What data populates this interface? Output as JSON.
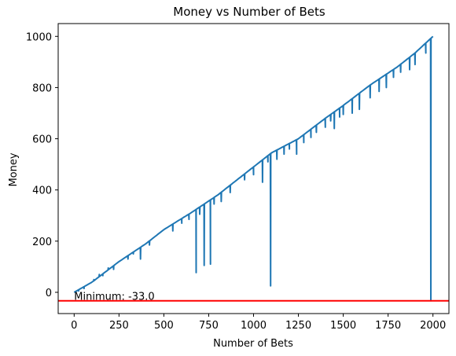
{
  "chart_data": {
    "type": "line",
    "title": "Money vs Number of Bets",
    "xlabel": "Number of Bets",
    "ylabel": "Money",
    "xlim": [
      -89,
      2089
    ],
    "ylim": [
      -83,
      1050
    ],
    "xticks": [
      0,
      250,
      500,
      750,
      1000,
      1250,
      1500,
      1750,
      2000
    ],
    "yticks": [
      0,
      200,
      400,
      600,
      800,
      1000
    ],
    "grid": false,
    "series": [
      {
        "color": "#1f77b4",
        "trend": [
          [
            0,
            0
          ],
          [
            100,
            40
          ],
          [
            250,
            120
          ],
          [
            400,
            190
          ],
          [
            500,
            245
          ],
          [
            650,
            310
          ],
          [
            800,
            380
          ],
          [
            1000,
            490
          ],
          [
            1100,
            545
          ],
          [
            1250,
            600
          ],
          [
            1400,
            680
          ],
          [
            1500,
            730
          ],
          [
            1650,
            810
          ],
          [
            1800,
            880
          ],
          [
            1900,
            935
          ],
          [
            2000,
            1000
          ]
        ],
        "dips": [
          [
            25,
            5
          ],
          [
            55,
            15
          ],
          [
            110,
            50
          ],
          [
            140,
            70
          ],
          [
            160,
            65
          ],
          [
            190,
            95
          ],
          [
            220,
            90
          ],
          [
            300,
            130
          ],
          [
            330,
            150
          ],
          [
            370,
            130
          ],
          [
            420,
            185
          ],
          [
            550,
            240
          ],
          [
            600,
            270
          ],
          [
            640,
            285
          ],
          [
            680,
            77
          ],
          [
            700,
            305
          ],
          [
            725,
            105
          ],
          [
            760,
            110
          ],
          [
            780,
            345
          ],
          [
            820,
            355
          ],
          [
            870,
            390
          ],
          [
            950,
            440
          ],
          [
            1000,
            460
          ],
          [
            1050,
            430
          ],
          [
            1080,
            510
          ],
          [
            1095,
            25
          ],
          [
            1130,
            520
          ],
          [
            1170,
            540
          ],
          [
            1200,
            560
          ],
          [
            1240,
            540
          ],
          [
            1280,
            585
          ],
          [
            1320,
            605
          ],
          [
            1350,
            625
          ],
          [
            1400,
            645
          ],
          [
            1430,
            670
          ],
          [
            1450,
            640
          ],
          [
            1480,
            685
          ],
          [
            1500,
            695
          ],
          [
            1550,
            700
          ],
          [
            1590,
            715
          ],
          [
            1650,
            760
          ],
          [
            1700,
            785
          ],
          [
            1740,
            800
          ],
          [
            1780,
            840
          ],
          [
            1820,
            860
          ],
          [
            1870,
            870
          ],
          [
            1900,
            890
          ],
          [
            1960,
            935
          ],
          [
            1988,
            -33
          ]
        ]
      }
    ],
    "hline": {
      "y": -33,
      "color": "#ff0000"
    },
    "annotation": {
      "text": "Minimum: -33.0",
      "x": 0,
      "y": -33
    }
  }
}
